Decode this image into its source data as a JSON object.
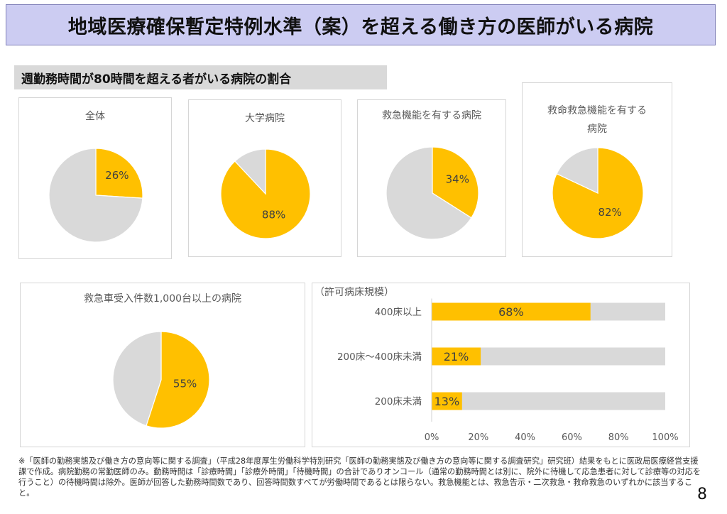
{
  "header": {
    "title": "地域医療確保暫定特例水準（案）を超える働き方の医師がいる病院"
  },
  "section": {
    "subtitle": "週勤務時間が80時間を超える者がいる病院の割合"
  },
  "colors": {
    "highlight": "#FFC000",
    "rest": "#D9D9D9"
  },
  "chart_data": [
    {
      "type": "pie",
      "title": "全体",
      "values": [
        26,
        74
      ],
      "labels": [
        "26%",
        ""
      ]
    },
    {
      "type": "pie",
      "title": "大学病院",
      "values": [
        88,
        12
      ],
      "labels": [
        "88%",
        ""
      ]
    },
    {
      "type": "pie",
      "title": "救急機能を有する病院",
      "values": [
        34,
        66
      ],
      "labels": [
        "34%",
        ""
      ]
    },
    {
      "type": "pie",
      "title_lines": [
        "救命救急機能を有する",
        "病院"
      ],
      "values": [
        82,
        18
      ],
      "labels": [
        "82%",
        ""
      ]
    },
    {
      "type": "pie",
      "title": "救急車受入件数1,000台以上の病院",
      "values": [
        55,
        45
      ],
      "labels": [
        "55%",
        ""
      ]
    },
    {
      "type": "bar",
      "orientation": "horizontal",
      "stacked_to": 100,
      "title": "（許可病床規模）",
      "categories": [
        "400床以上",
        "200床～400床未満",
        "200床未満"
      ],
      "values": [
        68,
        21,
        13
      ],
      "labels": [
        "68%",
        "21%",
        "13%"
      ],
      "xlim": [
        0,
        100
      ],
      "xticks": [
        "0%",
        "20%",
        "40%",
        "60%",
        "80%",
        "100%"
      ]
    }
  ],
  "footnote": "※「医師の勤務実態及び働き方の意向等に関する調査」（平成28年度厚生労働科学特別研究「医師の勤務実態及び働き方の意向等に関する調査研究」研究班）結果をもとに医政局医療経営支援課で作成。病院勤務の常勤医師のみ。勤務時間は「診療時間」「診療外時間」「待機時間」の合計でありオンコール（通常の勤務時間とは別に、院外に待機して応急患者に対して診療等の対応を行うこと）の待機時間は除外。医師が回答した勤務時間数であり、回答時間数すべてが労働時間であるとは限らない。救急機能とは、救急告示・二次救急・救命救急のいずれかに該当すること。",
  "page": {
    "number": "8"
  }
}
